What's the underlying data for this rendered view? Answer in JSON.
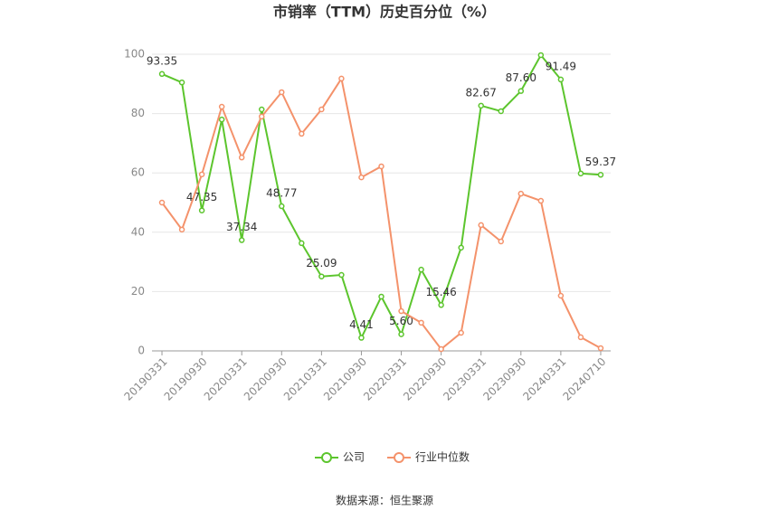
{
  "chart_data": {
    "type": "line",
    "title": "市销率（TTM）历史百分位（%）",
    "categories": [
      "20190331",
      null,
      "20190930",
      null,
      "20200331",
      null,
      "20200930",
      null,
      "20210331",
      null,
      "20210930",
      null,
      "20220331",
      null,
      "20220930",
      null,
      "20230331",
      null,
      "20230930",
      null,
      "20240331",
      null,
      "20240710"
    ],
    "series": [
      {
        "name": "公司",
        "color": "#5cc52d",
        "values": [
          93.35,
          90.5,
          47.35,
          78.0,
          37.34,
          81.4,
          48.77,
          36.3,
          25.09,
          25.6,
          4.41,
          18.3,
          5.6,
          27.4,
          15.46,
          34.8,
          82.67,
          80.8,
          87.6,
          99.7,
          91.49,
          59.8,
          59.37
        ],
        "value_labels": [
          "93.35",
          null,
          "47.35",
          null,
          "37.34",
          null,
          "48.77",
          null,
          "25.09",
          null,
          "4.41",
          null,
          "5.60",
          null,
          "15.46",
          null,
          "82.67",
          null,
          "87.60",
          null,
          "91.49",
          null,
          "59.37"
        ]
      },
      {
        "name": "行业中位数",
        "color": "#f4926b",
        "values": [
          50.0,
          40.9,
          59.5,
          82.3,
          65.2,
          79.0,
          87.2,
          73.2,
          81.4,
          91.8,
          58.5,
          62.2,
          13.4,
          9.5,
          0.6,
          6.1,
          42.4,
          36.9,
          53.0,
          50.6,
          18.6,
          4.6,
          0.9
        ]
      }
    ],
    "ylim": [
      0,
      100
    ],
    "yticks": [
      0,
      20,
      40,
      60,
      80,
      100
    ],
    "grid": true,
    "legend": "bottom",
    "source": "数据来源：恒生聚源"
  }
}
